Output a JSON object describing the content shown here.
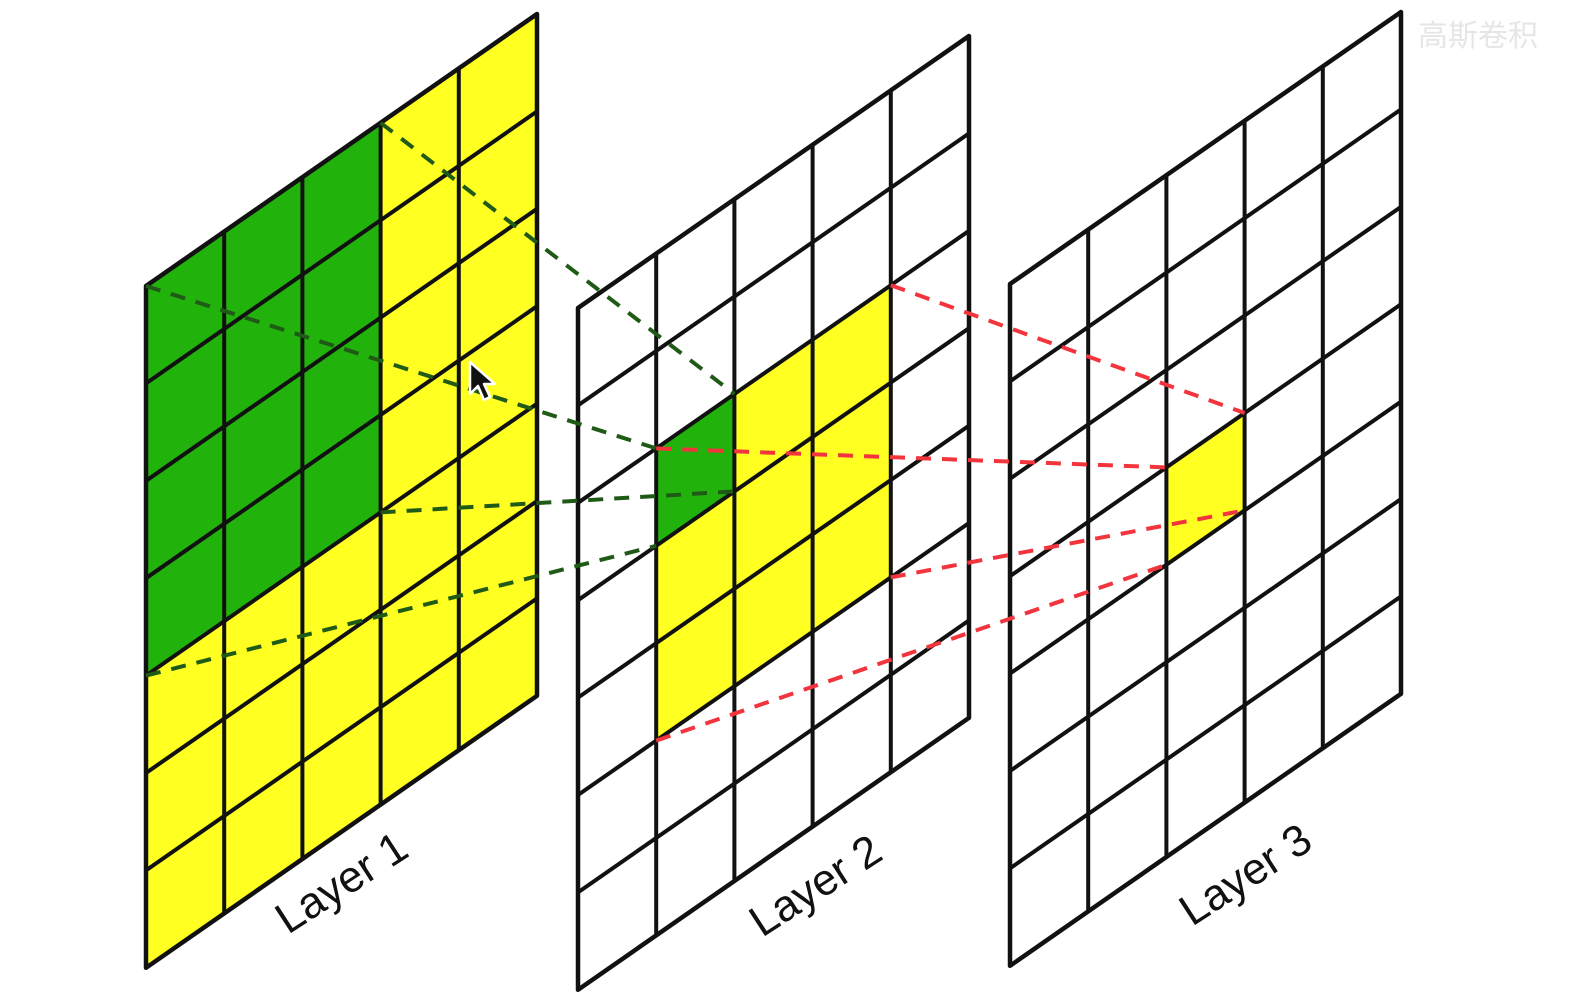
{
  "colors": {
    "highlight": "#ffff22",
    "receptive": "#22b20c",
    "empty": "#ffffff",
    "grid": "#111111",
    "green_connector": "#1f5a16",
    "red_connector": "#f2353d"
  },
  "layers": [
    {
      "label": "Layer 1",
      "rows": 7,
      "cols": 5,
      "default_fill": "highlight",
      "fills": [
        {
          "row_start": 0,
          "row_end": 3,
          "col_start": 0,
          "col_end": 2,
          "fill": "receptive"
        }
      ]
    },
    {
      "label": "Layer 2",
      "rows": 7,
      "cols": 5,
      "default_fill": "empty",
      "fills": [
        {
          "row_start": 2,
          "row_end": 4,
          "col_start": 1,
          "col_end": 3,
          "fill": "highlight"
        },
        {
          "row_start": 2,
          "row_end": 2,
          "col_start": 1,
          "col_end": 1,
          "fill": "receptive"
        }
      ]
    },
    {
      "label": "Layer 3",
      "rows": 7,
      "cols": 5,
      "default_fill": "empty",
      "fills": [
        {
          "row_start": 3,
          "row_end": 3,
          "col_start": 2,
          "col_end": 2,
          "fill": "highlight"
        }
      ]
    }
  ],
  "connectors": [
    {
      "color": "green_connector",
      "from_layer": 0,
      "from_corner": [
        0,
        0
      ],
      "to_layer": 1,
      "to_corner": [
        2,
        1
      ]
    },
    {
      "color": "green_connector",
      "from_layer": 0,
      "from_corner": [
        0,
        3
      ],
      "to_layer": 1,
      "to_corner": [
        2,
        2
      ]
    },
    {
      "color": "green_connector",
      "from_layer": 0,
      "from_corner": [
        4,
        0
      ],
      "to_layer": 1,
      "to_corner": [
        3,
        1
      ]
    },
    {
      "color": "green_connector",
      "from_layer": 0,
      "from_corner": [
        4,
        3
      ],
      "to_layer": 1,
      "to_corner": [
        3,
        2
      ]
    },
    {
      "color": "red_connector",
      "from_layer": 1,
      "from_corner": [
        2,
        1
      ],
      "to_layer": 2,
      "to_corner": [
        3,
        2
      ]
    },
    {
      "color": "red_connector",
      "from_layer": 1,
      "from_corner": [
        2,
        4
      ],
      "to_layer": 2,
      "to_corner": [
        3,
        3
      ]
    },
    {
      "color": "red_connector",
      "from_layer": 1,
      "from_corner": [
        5,
        1
      ],
      "to_layer": 2,
      "to_corner": [
        4,
        2
      ]
    },
    {
      "color": "red_connector",
      "from_layer": 1,
      "from_corner": [
        5,
        4
      ],
      "to_layer": 2,
      "to_corner": [
        4,
        3
      ]
    }
  ],
  "cursor": {
    "icon": "arrow-cursor-icon"
  }
}
